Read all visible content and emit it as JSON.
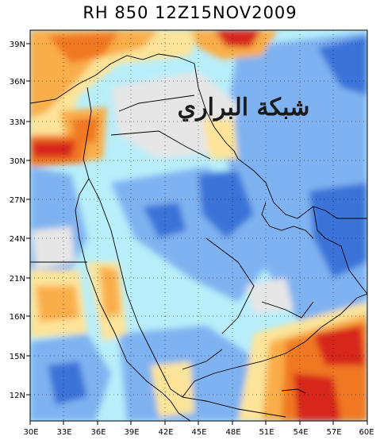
{
  "title": "RH 850  12Z15NOV2009",
  "watermark": "شبكة البراري",
  "axes": {
    "x_ticks": [
      "30E",
      "33E",
      "36E",
      "39E",
      "42E",
      "45E",
      "48E",
      "51E",
      "54E",
      "57E",
      "60E"
    ],
    "y_ticks": [
      "39N",
      "36N",
      "33N",
      "30N",
      "27N",
      "24N",
      "21N",
      "16N",
      "15N",
      "12N"
    ]
  },
  "colors": {
    "very_dry": "#3a73d8",
    "dry": "#7fb2f0",
    "moderate_dry": "#b8eefa",
    "neutral": "#e6e6e6",
    "moist": "#fde49a",
    "moist_high": "#f9ae4a",
    "wet": "#f07820",
    "very_wet": "#d7261c",
    "frame": "#000000"
  }
}
